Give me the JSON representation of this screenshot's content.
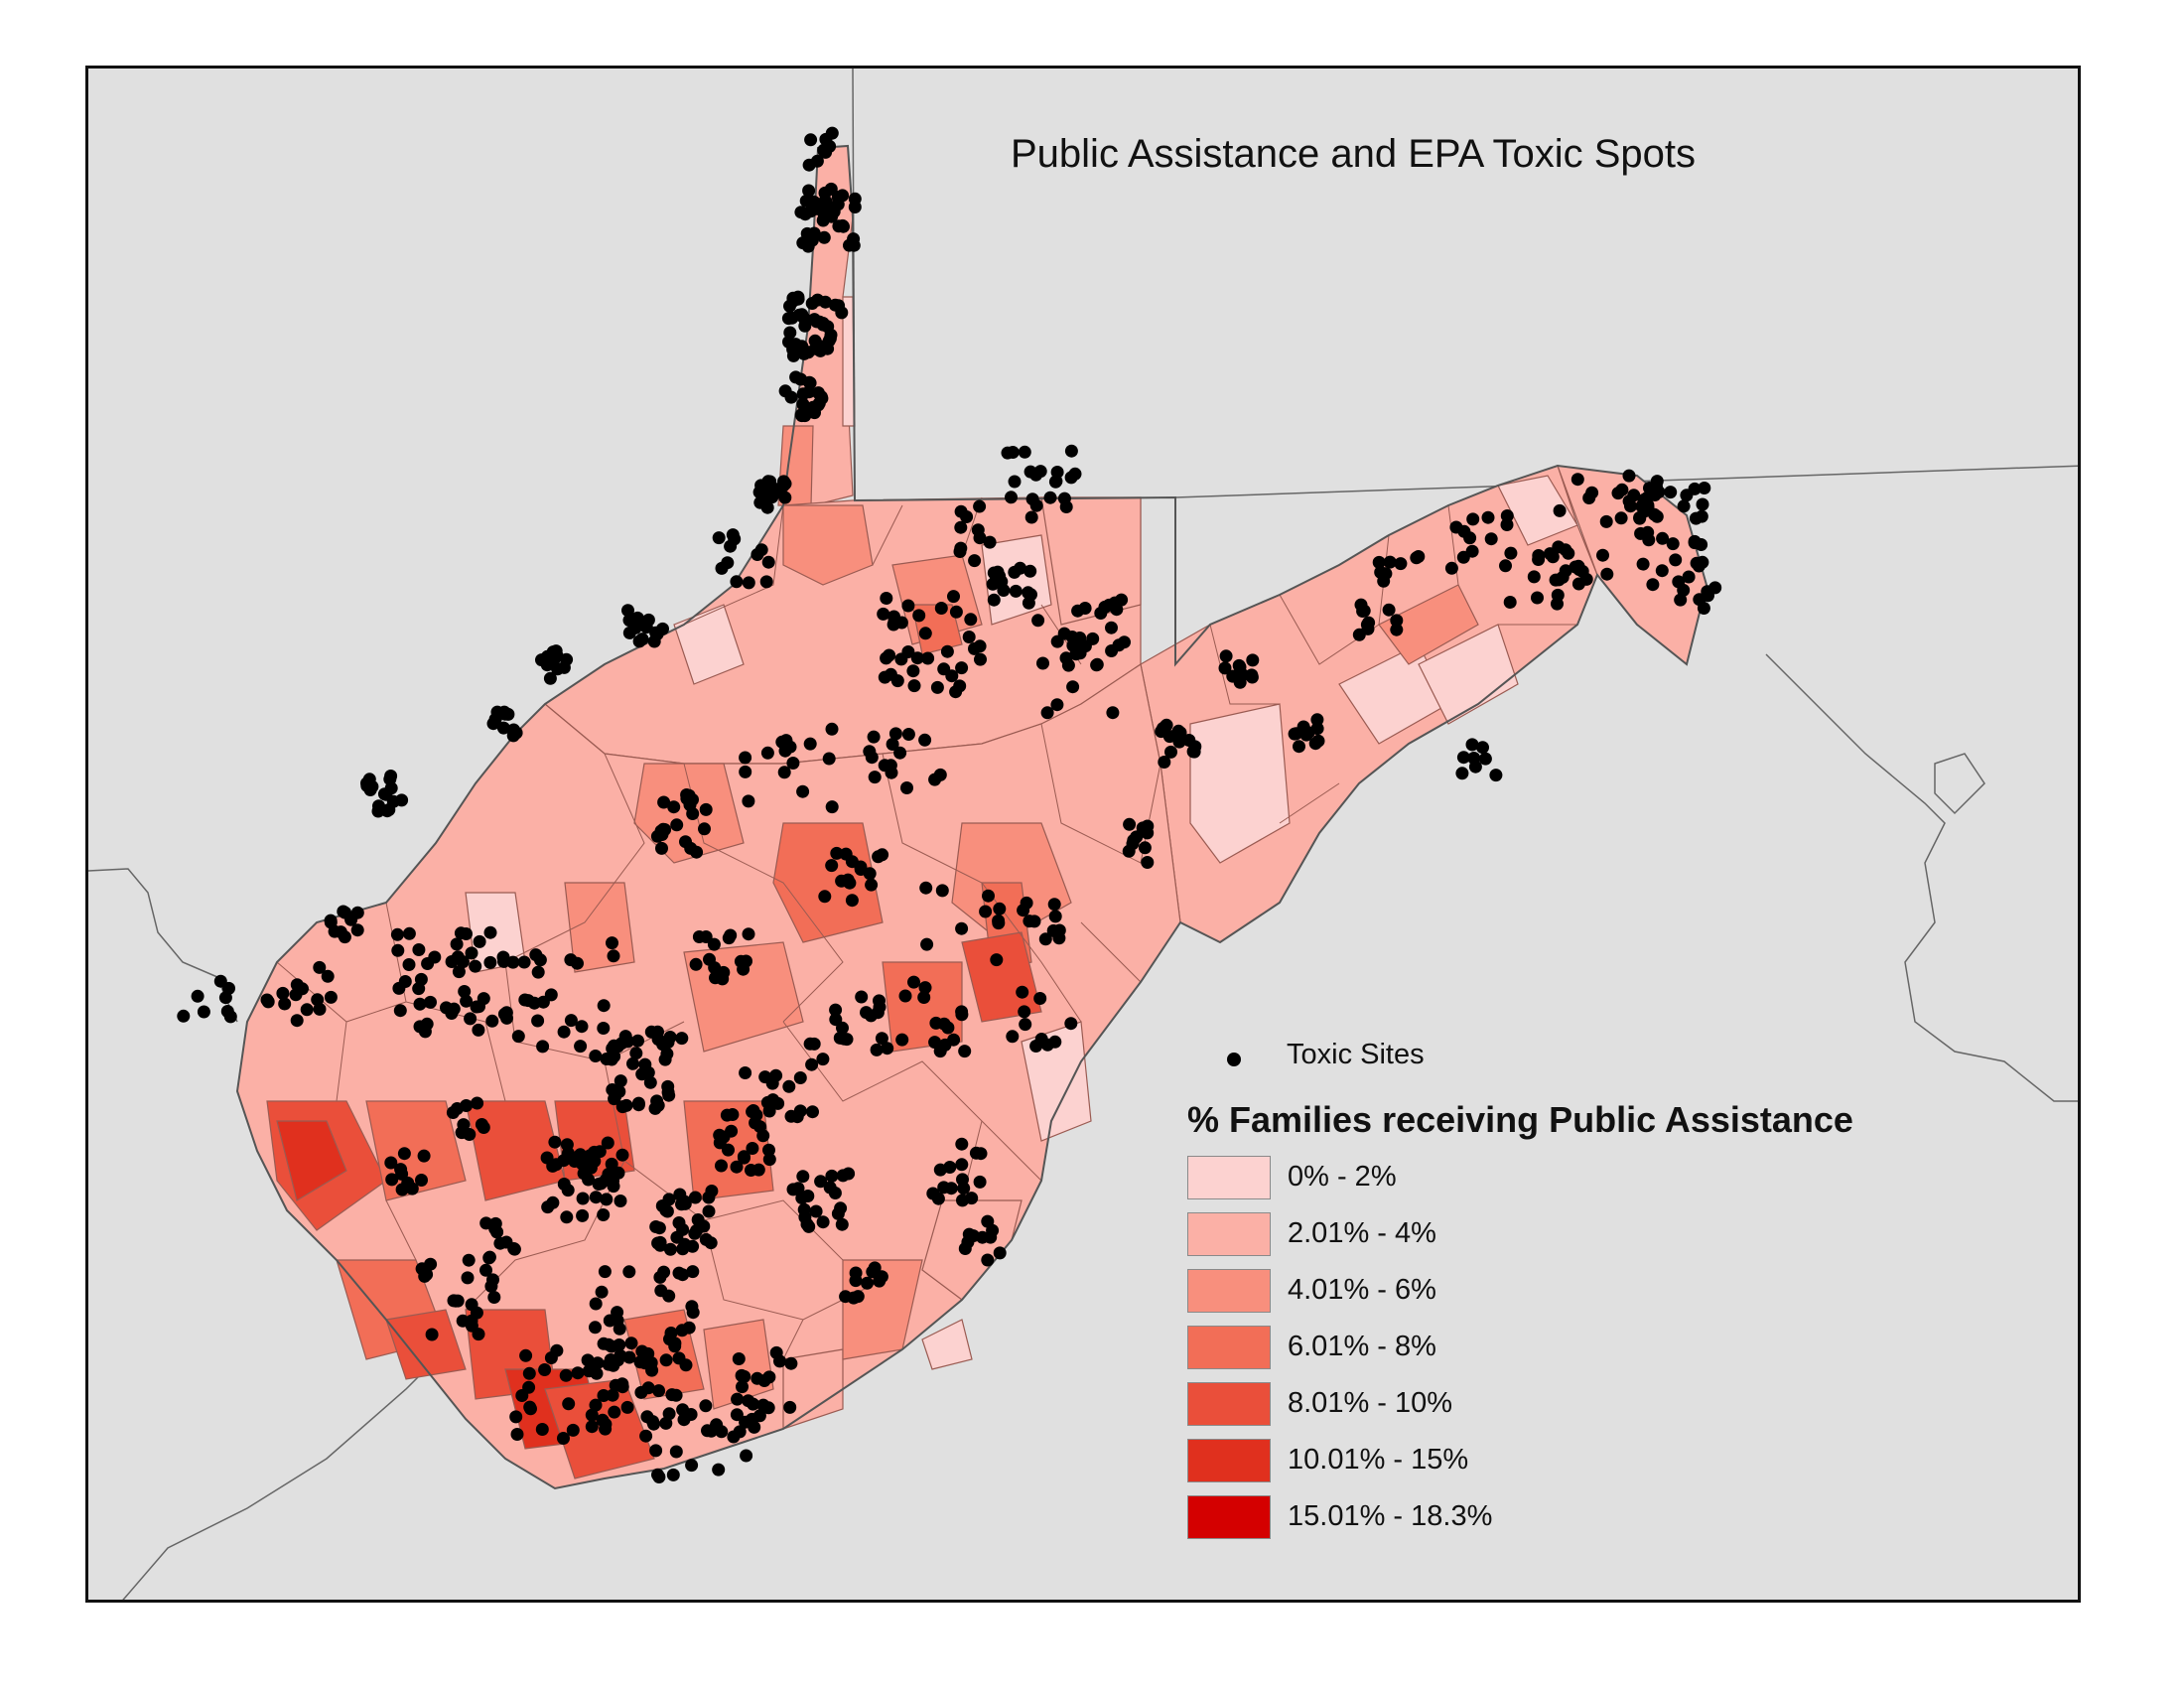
{
  "title": "Public Assistance and EPA Toxic Spots",
  "legend": {
    "points_label": "Toxic Sites",
    "points_color": "#000000",
    "choropleth_title": "% Families receiving Public Assistance",
    "classes": [
      {
        "label": "0% - 2%",
        "color": "#fcd2d0"
      },
      {
        "label": "2.01% - 4%",
        "color": "#fbb0a6"
      },
      {
        "label": "4.01% - 6%",
        "color": "#f88f7d"
      },
      {
        "label": "6.01% - 8%",
        "color": "#f26e57"
      },
      {
        "label": "8.01% - 10%",
        "color": "#ea4f3a"
      },
      {
        "label": "10.01% - 15%",
        "color": "#e0301e"
      },
      {
        "label": "15.01% - 18.3%",
        "color": "#d40000"
      }
    ]
  },
  "colors": {
    "background": "#e0e0e0",
    "state_border": "#555555",
    "tract_line": "#9a5b52"
  }
}
